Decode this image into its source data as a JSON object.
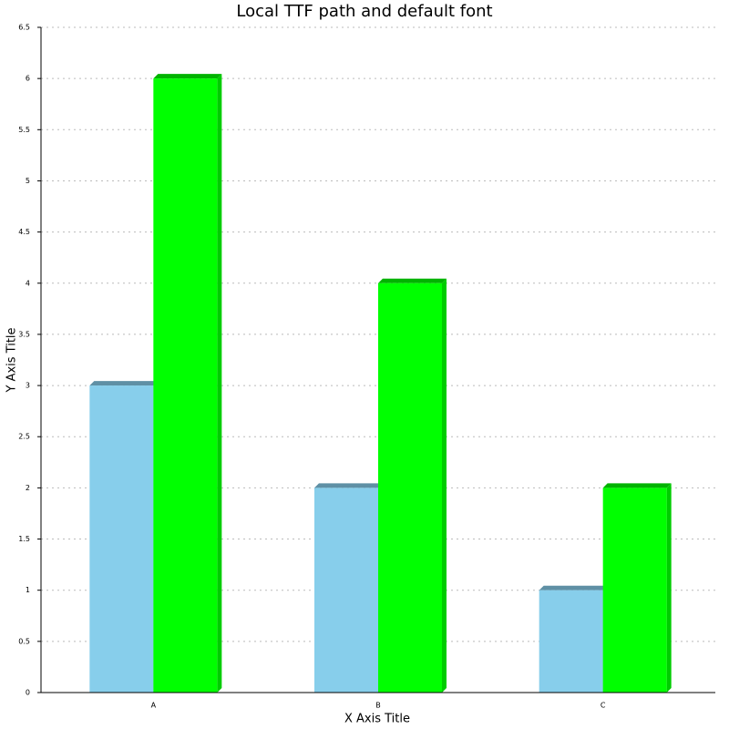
{
  "chart_data": {
    "type": "bar",
    "title": "Local TTF path and default font",
    "x_label": "X Axis Title",
    "y_label": "Y Axis Title",
    "categories": [
      "A",
      "B",
      "C"
    ],
    "series": [
      {
        "color": "#87ceeb",
        "values": [
          3,
          2,
          1
        ]
      },
      {
        "color": "#00ff00",
        "values": [
          6,
          4,
          2
        ]
      }
    ],
    "ylim": [
      0,
      6.5
    ],
    "yticks": [
      0,
      0.5,
      1,
      1.5,
      2,
      2.5,
      3,
      3.5,
      4,
      4.5,
      5,
      5.5,
      6,
      6.5
    ],
    "grid": true
  }
}
